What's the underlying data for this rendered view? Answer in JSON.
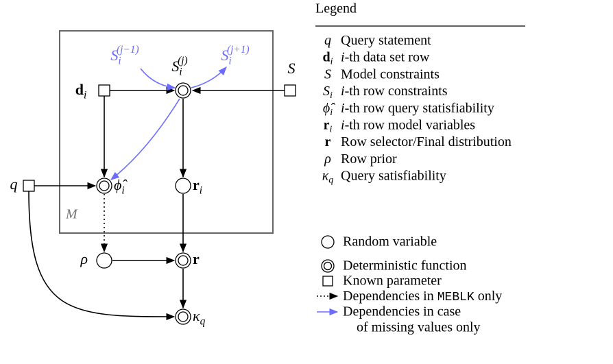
{
  "diagram": {
    "container_label": "M",
    "labels": {
      "q": {
        "base": "q"
      },
      "d": {
        "base": "d",
        "sub": "i",
        "bold": true
      },
      "S": {
        "base": "S"
      },
      "Sj": {
        "base": "S",
        "sub": "i",
        "sup": "(j)"
      },
      "Sjm": {
        "base": "S",
        "sub": "i",
        "sup": "(j−1)"
      },
      "Sjp": {
        "base": "S",
        "sub": "i",
        "sup": "(j+1)"
      },
      "phi": {
        "base": "ϕ̂",
        "sub": "i"
      },
      "ri": {
        "base": "r",
        "sub": "i",
        "bold": true
      },
      "rho": {
        "base": "ρ"
      },
      "r": {
        "base": "r",
        "bold": true
      },
      "kappa": {
        "base": "κ",
        "sub": "q"
      }
    }
  },
  "legend": {
    "title": "Legend",
    "items": [
      {
        "symbol": {
          "base": "q"
        },
        "text": "Query statement"
      },
      {
        "symbol": {
          "base": "d",
          "sub": "i",
          "bold": true
        },
        "em": "i",
        "text": "-th data set row"
      },
      {
        "symbol": {
          "base": "S"
        },
        "text": "Model constraints"
      },
      {
        "symbol": {
          "base": "S",
          "sub": "i"
        },
        "em": "i",
        "text": "-th row constraints"
      },
      {
        "symbol": {
          "base": "ϕ̂",
          "sub": "i"
        },
        "em": "i",
        "text": "-th row query statisfiability"
      },
      {
        "symbol": {
          "base": "r",
          "sub": "i",
          "bold": true
        },
        "em": "i",
        "text": "-th row model variables"
      },
      {
        "symbol": {
          "base": "r",
          "bold": true
        },
        "text": "Row selector/Final distribution"
      },
      {
        "symbol": {
          "base": "ρ"
        },
        "text": "Row prior"
      },
      {
        "symbol": {
          "base": "κ",
          "sub": "q"
        },
        "text": "Query satisfiability"
      }
    ],
    "shapes": {
      "random": "Random variable",
      "deterministic": "Deterministic function",
      "known": "Known parameter",
      "dotted": {
        "before": "Dependencies in ",
        "code": "MEBLK",
        "after": " only"
      },
      "blue": [
        "Dependencies in case",
        "of missing values only"
      ]
    }
  }
}
